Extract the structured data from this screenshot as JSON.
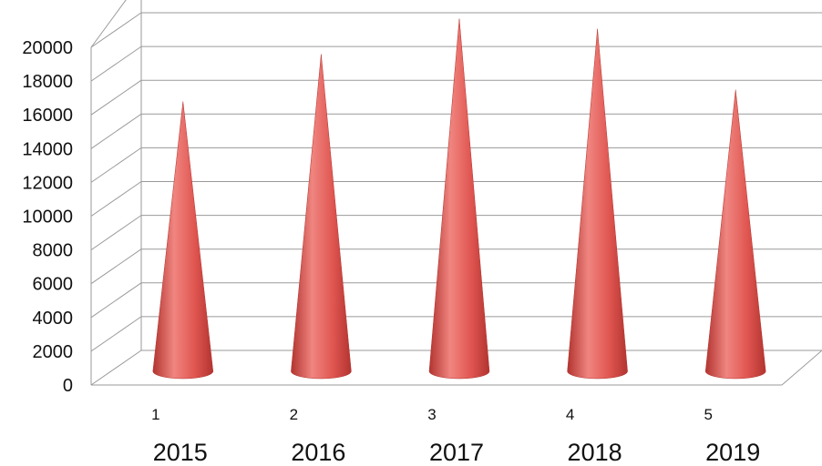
{
  "chart_data": {
    "type": "bar",
    "style": "3d-cone",
    "title": "",
    "xlabel": "",
    "ylabel": "",
    "categories": [
      "1",
      "2",
      "3",
      "4",
      "5"
    ],
    "category_years": [
      "2015",
      "2016",
      "2017",
      "2018",
      "2019"
    ],
    "series": [
      {
        "values": [
          15500,
          18300,
          20400,
          19800,
          16200
        ]
      }
    ],
    "ylim": [
      0,
      20000
    ],
    "yticks": [
      0,
      2000,
      4000,
      6000,
      8000,
      10000,
      12000,
      14000,
      16000,
      18000,
      20000
    ],
    "grid": true,
    "legend": "none",
    "colors": {
      "cone": "#e05550",
      "cone_light": "#f08580",
      "cone_dark": "#b23430",
      "grid": "#9a9a9a"
    }
  }
}
